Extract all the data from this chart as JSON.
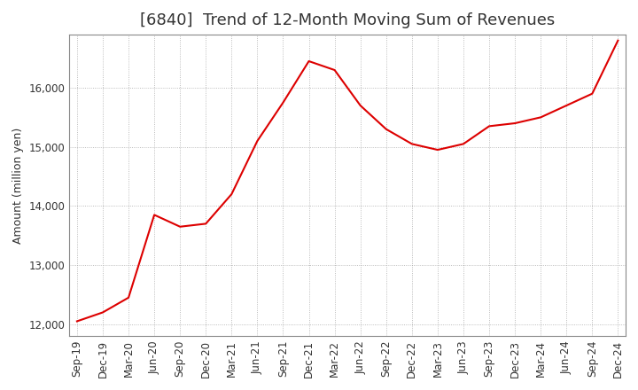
{
  "title": "[6840]  Trend of 12-Month Moving Sum of Revenues",
  "ylabel": "Amount (million yen)",
  "background_color": "#ffffff",
  "plot_bg_color": "#ffffff",
  "grid_color": "#aaaaaa",
  "line_color": "#dd0000",
  "x_labels": [
    "Sep-19",
    "Dec-19",
    "Mar-20",
    "Jun-20",
    "Sep-20",
    "Dec-20",
    "Mar-21",
    "Jun-21",
    "Sep-21",
    "Dec-21",
    "Mar-22",
    "Jun-22",
    "Sep-22",
    "Dec-22",
    "Mar-23",
    "Jun-23",
    "Sep-23",
    "Dec-23",
    "Mar-24",
    "Jun-24",
    "Sep-24",
    "Dec-24"
  ],
  "values": [
    12050,
    12200,
    12450,
    13850,
    13650,
    13700,
    14200,
    15100,
    15750,
    16450,
    16300,
    15700,
    15300,
    15050,
    14950,
    15050,
    15350,
    15400,
    15500,
    15700,
    15900,
    16800
  ],
  "ylim": [
    11800,
    16900
  ],
  "yticks": [
    12000,
    13000,
    14000,
    15000,
    16000
  ],
  "title_fontsize": 13,
  "label_fontsize": 9,
  "tick_fontsize": 8.5
}
